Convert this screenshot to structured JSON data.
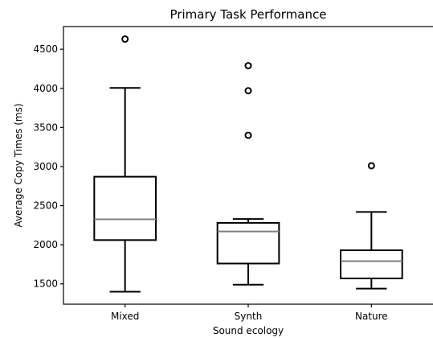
{
  "chart_data": {
    "type": "box",
    "title": "Primary Task Performance",
    "xlabel": "Sound ecology",
    "ylabel": "Average Copy Times (ms)",
    "ylim": [
      1240,
      4790
    ],
    "yticks": [
      1500,
      2000,
      2500,
      3000,
      3500,
      4000,
      4500
    ],
    "grid": false,
    "colors": {
      "box": "#000000",
      "median": "#7f7f7f"
    },
    "categories": [
      "Mixed",
      "Synth",
      "Nature"
    ],
    "boxes": [
      {
        "name": "Mixed",
        "whislo": 1400,
        "q1": 2060,
        "med": 2325,
        "q3": 2870,
        "whishi": 4005,
        "fliers": [
          4630
        ]
      },
      {
        "name": "Synth",
        "whislo": 1490,
        "q1": 1760,
        "med": 2170,
        "q3": 2280,
        "whishi": 2330,
        "fliers": [
          3400,
          3970,
          4290
        ]
      },
      {
        "name": "Nature",
        "whislo": 1440,
        "q1": 1570,
        "med": 1790,
        "q3": 1930,
        "whishi": 2420,
        "fliers": [
          3010
        ]
      }
    ]
  }
}
